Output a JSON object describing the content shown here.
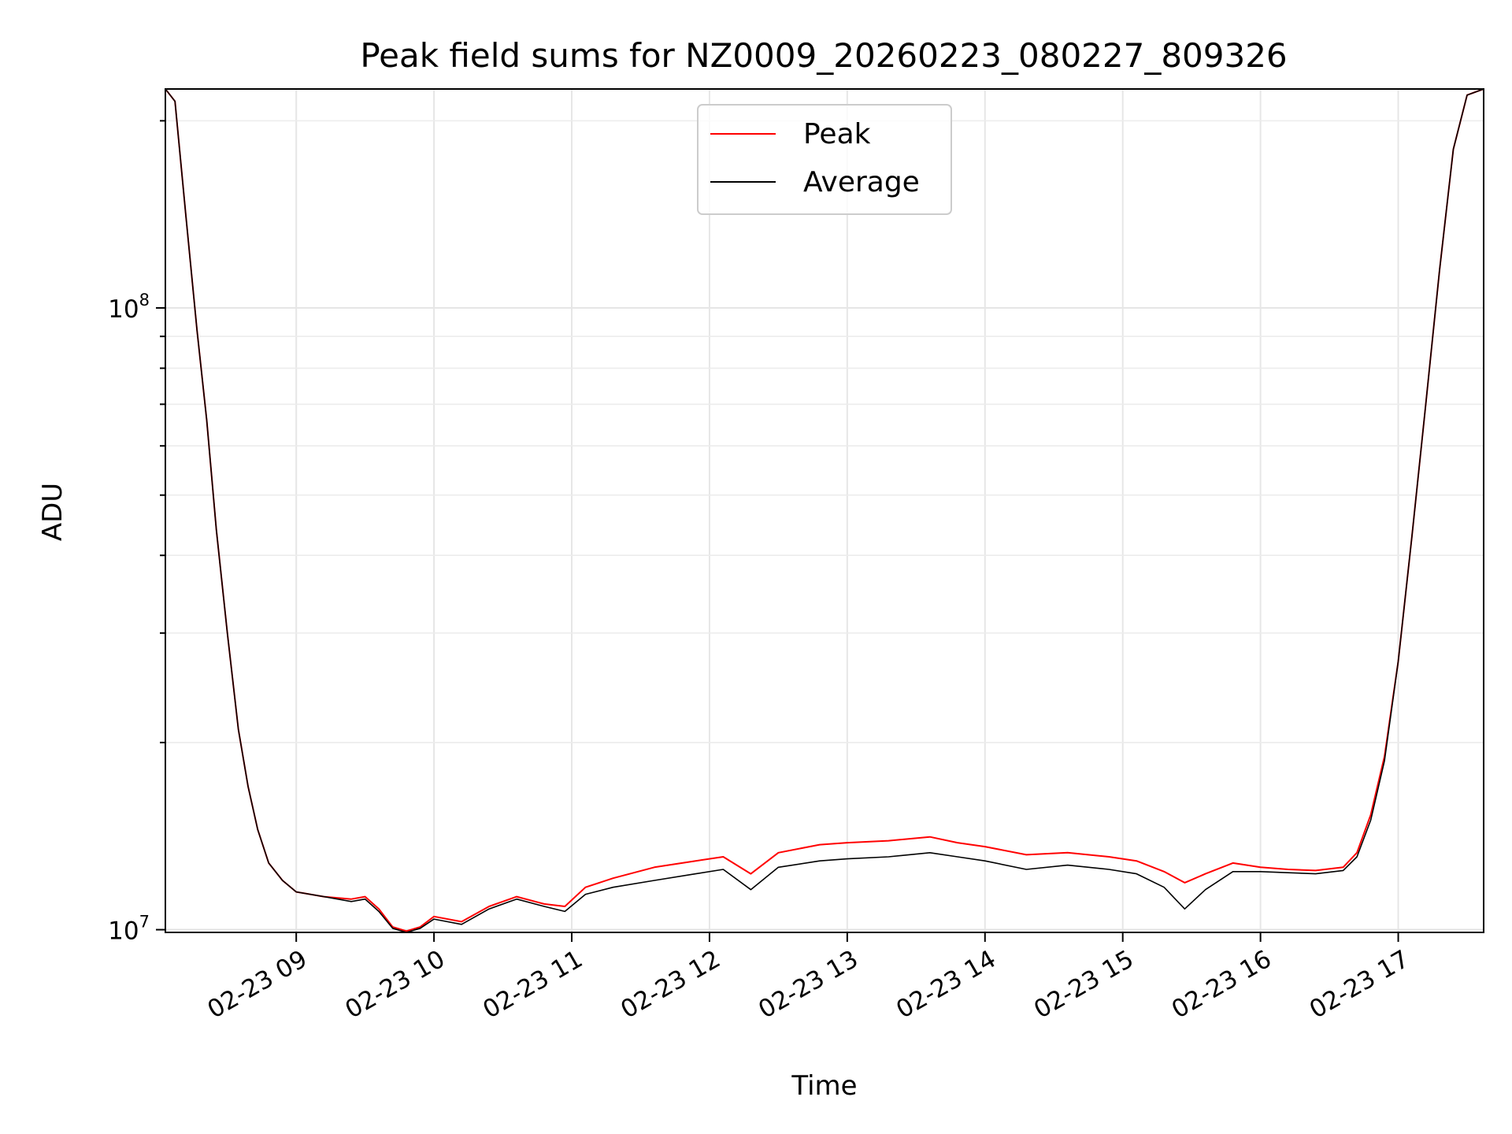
{
  "chart_data": {
    "type": "line",
    "title": "Peak field sums for NZ0009_20260223_080227_809326",
    "xlabel": "Time",
    "ylabel": "ADU",
    "yscale": "log",
    "ylim": [
      9900000,
      225000000
    ],
    "xlim": [
      8.05,
      17.62
    ],
    "grid": true,
    "legend_position": "upper-center",
    "xticks": [
      {
        "value": 9,
        "label": "02-23 09"
      },
      {
        "value": 10,
        "label": "02-23 10"
      },
      {
        "value": 11,
        "label": "02-23 11"
      },
      {
        "value": 12,
        "label": "02-23 12"
      },
      {
        "value": 13,
        "label": "02-23 13"
      },
      {
        "value": 14,
        "label": "02-23 14"
      },
      {
        "value": 15,
        "label": "02-23 15"
      },
      {
        "value": 16,
        "label": "02-23 16"
      },
      {
        "value": 17,
        "label": "02-23 17"
      }
    ],
    "yticks": [
      {
        "value": 10000000,
        "base": "10",
        "exp": "7"
      },
      {
        "value": 100000000,
        "base": "10",
        "exp": "8"
      }
    ],
    "series": [
      {
        "name": "Peak",
        "color": "#ff0000",
        "x": [
          8.05,
          8.12,
          8.2,
          8.28,
          8.35,
          8.42,
          8.5,
          8.58,
          8.65,
          8.72,
          8.8,
          8.9,
          9.0,
          9.2,
          9.4,
          9.5,
          9.6,
          9.7,
          9.8,
          9.9,
          10.0,
          10.2,
          10.4,
          10.6,
          10.8,
          10.95,
          11.1,
          11.3,
          11.6,
          11.9,
          12.1,
          12.3,
          12.5,
          12.8,
          13.0,
          13.3,
          13.6,
          13.8,
          14.0,
          14.3,
          14.6,
          14.9,
          15.1,
          15.3,
          15.45,
          15.6,
          15.8,
          16.0,
          16.2,
          16.4,
          16.6,
          16.7,
          16.8,
          16.9,
          17.0,
          17.1,
          17.2,
          17.3,
          17.4,
          17.5,
          17.62
        ],
        "values": [
          225000000,
          215000000,
          140000000,
          92000000,
          66000000,
          44000000,
          30000000,
          21000000,
          17000000,
          14500000,
          12800000,
          12000000,
          11500000,
          11300000,
          11200000,
          11300000,
          10800000,
          10100000,
          9950000,
          10100000,
          10500000,
          10300000,
          10900000,
          11300000,
          11000000,
          10900000,
          11700000,
          12100000,
          12600000,
          12900000,
          13100000,
          12300000,
          13300000,
          13700000,
          13800000,
          13900000,
          14100000,
          13800000,
          13600000,
          13200000,
          13300000,
          13100000,
          12900000,
          12400000,
          11900000,
          12300000,
          12800000,
          12600000,
          12500000,
          12450000,
          12600000,
          13300000,
          15300000,
          19000000,
          27000000,
          43000000,
          70000000,
          115000000,
          180000000,
          220000000,
          225000000
        ]
      },
      {
        "name": "Average",
        "color": "#000000",
        "x": [
          8.05,
          8.12,
          8.2,
          8.28,
          8.35,
          8.42,
          8.5,
          8.58,
          8.65,
          8.72,
          8.8,
          8.9,
          9.0,
          9.2,
          9.4,
          9.5,
          9.6,
          9.7,
          9.8,
          9.9,
          10.0,
          10.2,
          10.4,
          10.6,
          10.8,
          10.95,
          11.1,
          11.3,
          11.6,
          11.9,
          12.1,
          12.3,
          12.5,
          12.8,
          13.0,
          13.3,
          13.6,
          13.8,
          14.0,
          14.3,
          14.6,
          14.9,
          15.1,
          15.3,
          15.45,
          15.6,
          15.8,
          16.0,
          16.2,
          16.4,
          16.6,
          16.7,
          16.8,
          16.9,
          17.0,
          17.1,
          17.2,
          17.3,
          17.4,
          17.5,
          17.62
        ],
        "values": [
          225000000,
          215000000,
          140000000,
          92000000,
          66000000,
          44000000,
          30000000,
          21000000,
          17000000,
          14500000,
          12800000,
          12000000,
          11500000,
          11300000,
          11100000,
          11200000,
          10700000,
          10050000,
          9900000,
          10050000,
          10400000,
          10200000,
          10800000,
          11200000,
          10900000,
          10700000,
          11400000,
          11700000,
          12000000,
          12300000,
          12500000,
          11600000,
          12600000,
          12900000,
          13000000,
          13100000,
          13300000,
          13100000,
          12900000,
          12500000,
          12700000,
          12500000,
          12300000,
          11700000,
          10800000,
          11600000,
          12400000,
          12400000,
          12350000,
          12300000,
          12450000,
          13100000,
          15000000,
          18700000,
          27000000,
          43000000,
          70000000,
          115000000,
          180000000,
          220000000,
          225000000
        ]
      }
    ]
  }
}
